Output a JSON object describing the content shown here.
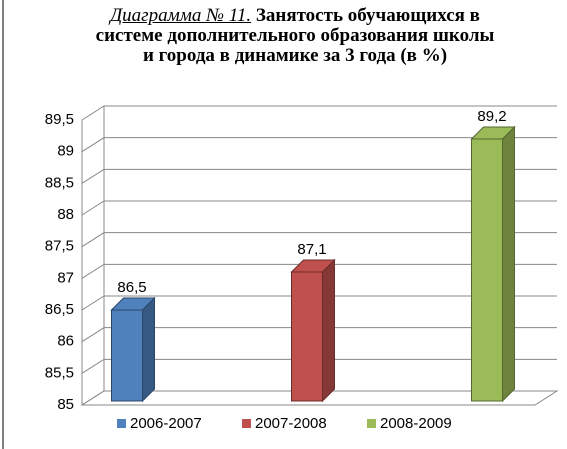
{
  "chart_data": {
    "type": "bar3d",
    "title": [
      "Диаграмма № 11.",
      "Занятость обучающихся  в системе дополнительного образования школы и города в динамике за 3 года (в %)"
    ],
    "categories": [
      null
    ],
    "series": [
      {
        "name": "2006-2007",
        "color": "#4f81bd",
        "values": [
          86.5
        ],
        "value_labels": [
          "86,5"
        ]
      },
      {
        "name": "2007-2008",
        "color": "#c0504d",
        "values": [
          87.1
        ],
        "value_labels": [
          "87,1"
        ]
      },
      {
        "name": "2008-2009",
        "color": "#9bbb59",
        "values": [
          89.2
        ],
        "value_labels": [
          "89,2"
        ]
      }
    ],
    "ylim": [
      85,
      89.5
    ],
    "yticks": [
      85,
      {
        "value": 85.5,
        "label": "85,5"
      },
      86,
      {
        "value": 86.5,
        "label": "86,5"
      },
      87,
      {
        "value": 87.5,
        "label": "87,5"
      },
      88,
      {
        "value": 88.5,
        "label": "88,5"
      },
      89,
      {
        "value": 89.5,
        "label": "89,5"
      }
    ],
    "grid": true,
    "legend": "bottom"
  }
}
